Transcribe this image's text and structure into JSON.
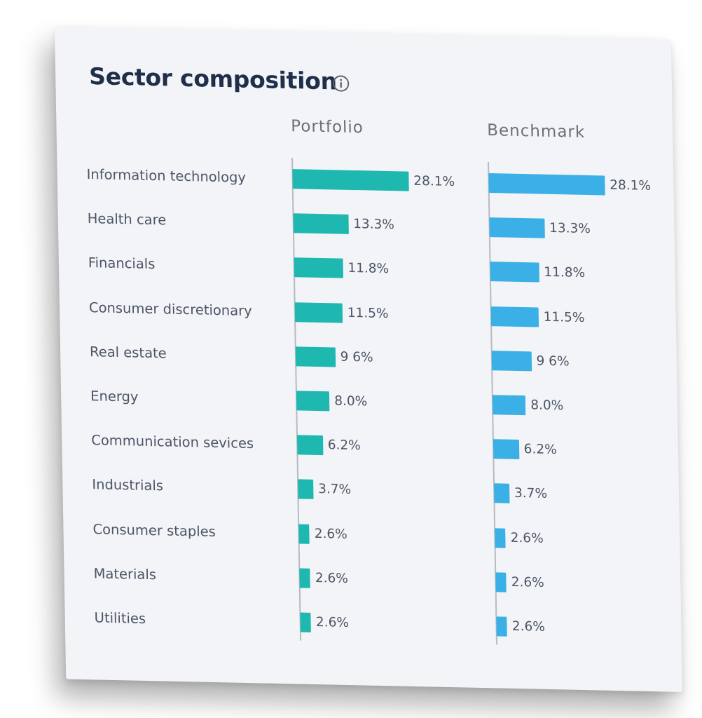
{
  "title": "Sector composition",
  "icons": {
    "info": "info-icon"
  },
  "colors": {
    "portfolio": "#1fb8b1",
    "benchmark": "#3bb0e7",
    "title": "#1f2f4a"
  },
  "chart_data": {
    "type": "bar",
    "orientation": "horizontal",
    "title": "Sector composition",
    "categories": [
      "Information technology",
      "Health care",
      "Financials",
      "Consumer discretionary",
      "Real estate",
      "Energy",
      "Communication sevices",
      "Industrials",
      "Consumer staples",
      "Materials",
      "Utilities"
    ],
    "series": [
      {
        "name": "Portfolio",
        "values": [
          28.1,
          13.3,
          11.8,
          11.5,
          9.6,
          8.0,
          6.2,
          3.7,
          2.6,
          2.6,
          2.6
        ],
        "labels": [
          "28.1%",
          "13.3%",
          "11.8%",
          "11.5%",
          "9 6%",
          "8.0%",
          "6.2%",
          "3.7%",
          "2.6%",
          "2.6%",
          "2.6%"
        ]
      },
      {
        "name": "Benchmark",
        "values": [
          28.1,
          13.3,
          11.8,
          11.5,
          9.6,
          8.0,
          6.2,
          3.7,
          2.6,
          2.6,
          2.6
        ],
        "labels": [
          "28.1%",
          "13.3%",
          "11.8%",
          "11.5%",
          "9 6%",
          "8.0%",
          "6.2%",
          "3.7%",
          "2.6%",
          "2.6%",
          "2.6%"
        ]
      }
    ],
    "unit": "%",
    "grid": false,
    "legend": "column headers"
  }
}
